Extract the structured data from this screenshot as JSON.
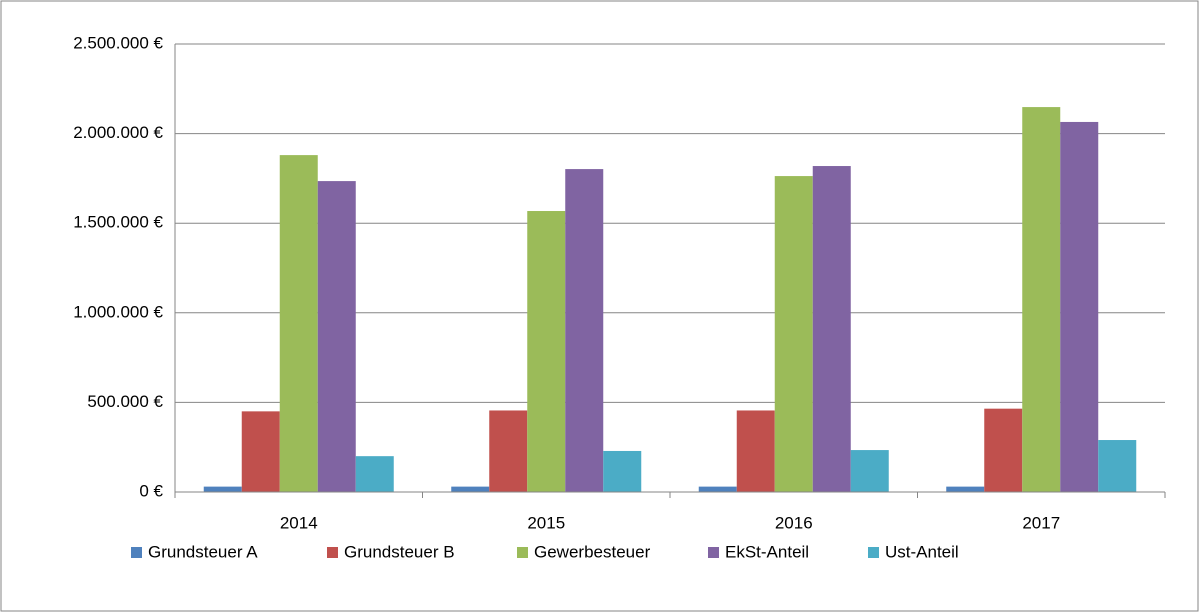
{
  "chart_data": {
    "type": "bar",
    "categories": [
      "2014",
      "2015",
      "2016",
      "2017"
    ],
    "series": [
      {
        "name": "Grundsteuer A",
        "color": "#4f81bd",
        "values": [
          30000,
          30000,
          30000,
          30000
        ]
      },
      {
        "name": "Grundsteuer B",
        "color": "#c0504d",
        "values": [
          450000,
          455000,
          455000,
          465000
        ]
      },
      {
        "name": "Gewerbesteuer",
        "color": "#9bbb59",
        "values": [
          1880000,
          1568000,
          1763000,
          2148000
        ]
      },
      {
        "name": "EkSt-Anteil",
        "color": "#8064a2",
        "values": [
          1735000,
          1802000,
          1819000,
          2065000
        ]
      },
      {
        "name": "Ust-Anteil",
        "color": "#4bacc6",
        "values": [
          200000,
          229000,
          234000,
          290000
        ]
      }
    ],
    "ylim": [
      0,
      2500000
    ],
    "yticks": [
      {
        "value": 0,
        "label": "0 €"
      },
      {
        "value": 500000,
        "label": "500.000 €"
      },
      {
        "value": 1000000,
        "label": "1.000.000 €"
      },
      {
        "value": 1500000,
        "label": "1.500.000 €"
      },
      {
        "value": 2000000,
        "label": "2.000.000 €"
      },
      {
        "value": 2500000,
        "label": "2.500.000 €"
      }
    ],
    "grid": true,
    "legend": "bottom"
  }
}
